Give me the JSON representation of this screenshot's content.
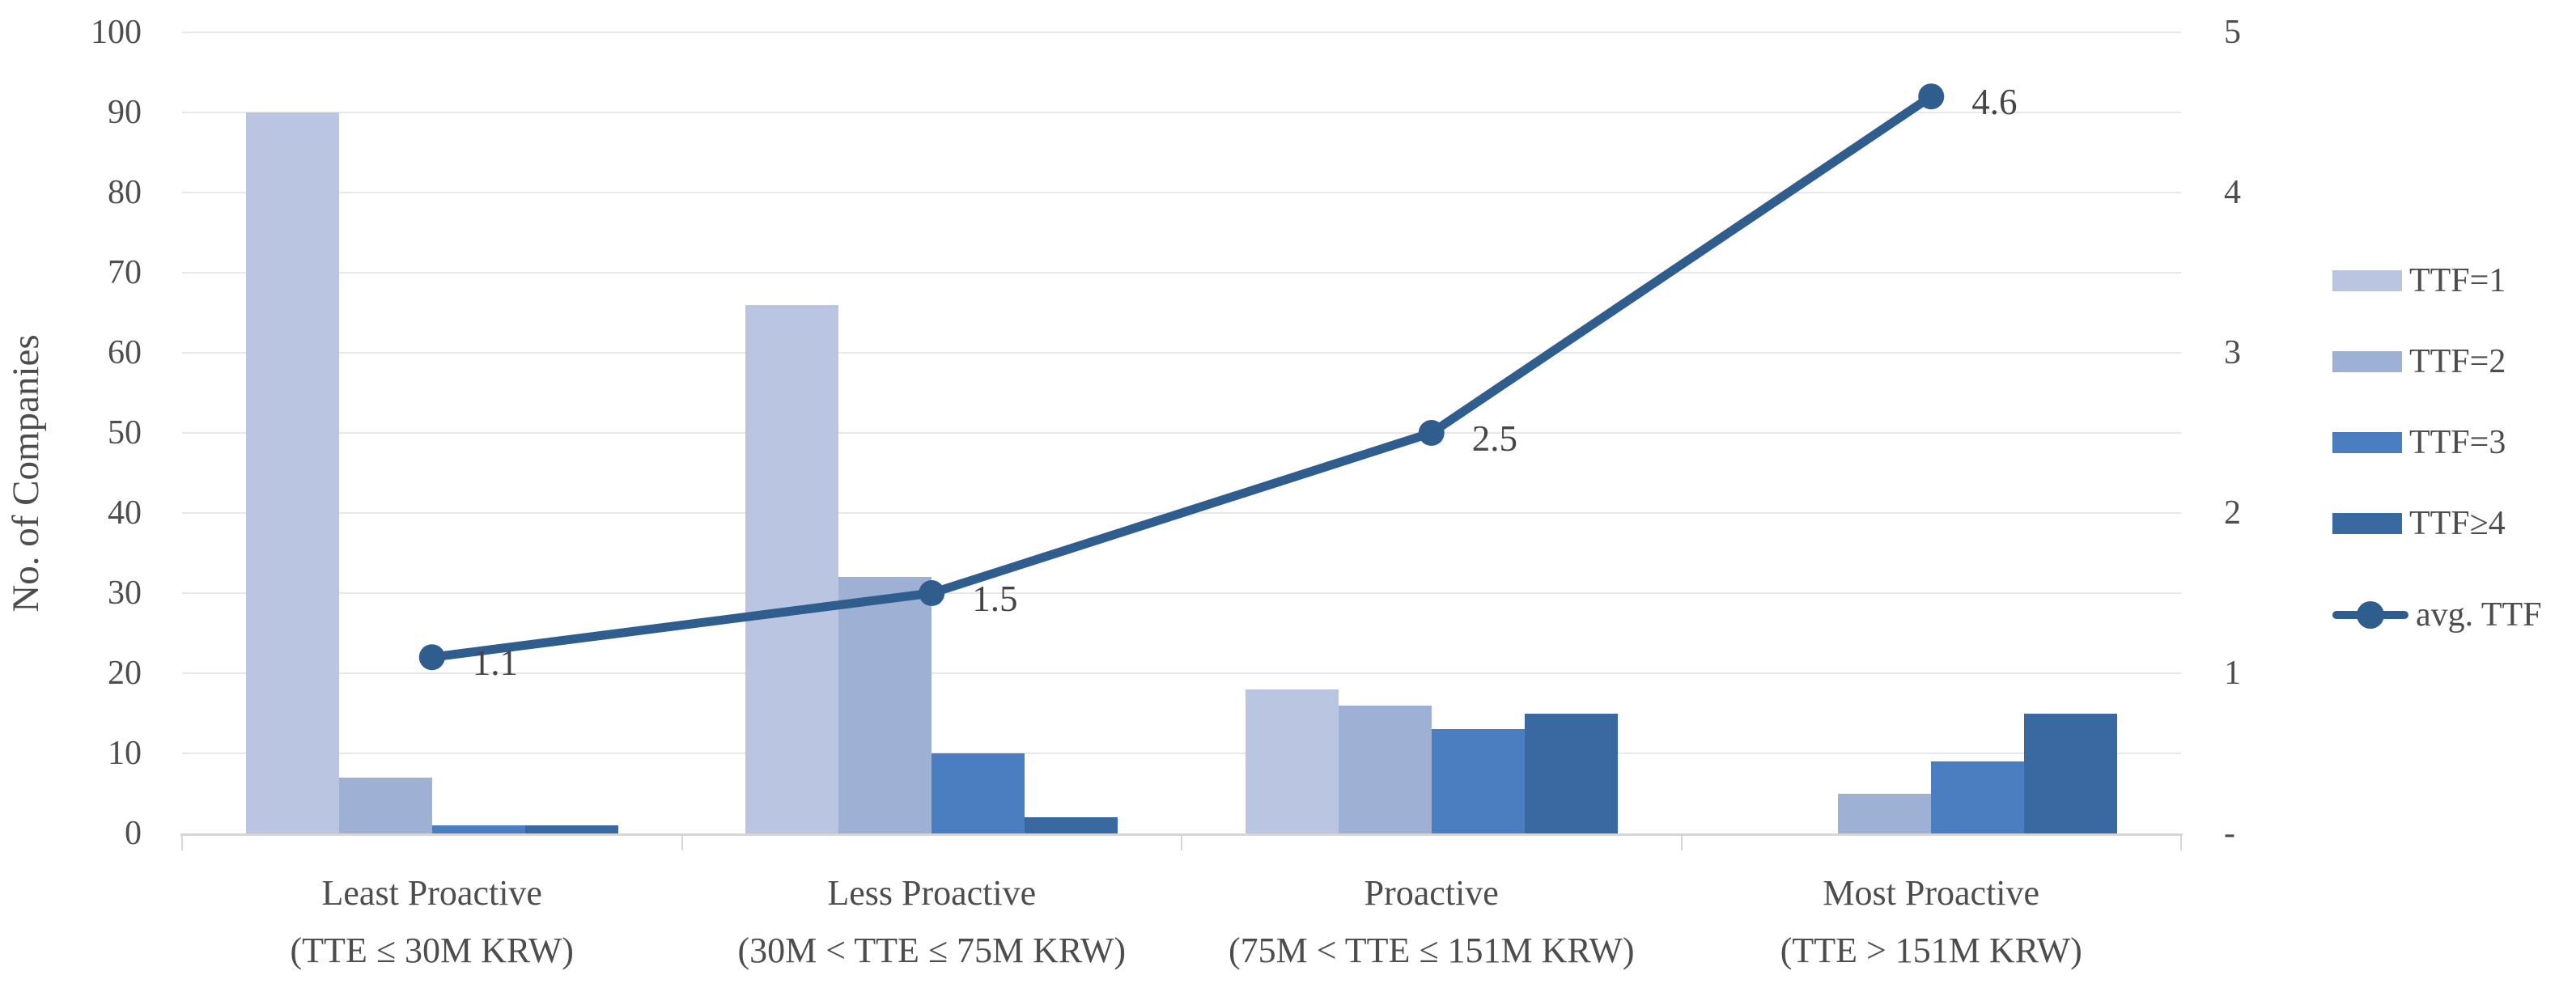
{
  "chart_data": {
    "type": "combo-bar-line",
    "title": "",
    "categories": [
      {
        "title": "Least Proactive",
        "subtitle": "(TTE ≤ 30M KRW)"
      },
      {
        "title": "Less Proactive",
        "subtitle": "(30M < TTE ≤ 75M KRW)"
      },
      {
        "title": "Proactive",
        "subtitle": "(75M < TTE ≤ 151M KRW)"
      },
      {
        "title": "Most Proactive",
        "subtitle": "(TTE > 151M KRW)"
      }
    ],
    "bar_series": [
      {
        "name": "TTF=1",
        "color": "#b9c5e1",
        "values": [
          90,
          66,
          18,
          0
        ]
      },
      {
        "name": "TTF=2",
        "color": "#9fb0d5",
        "values": [
          7,
          32,
          16,
          5
        ]
      },
      {
        "name": "TTF=3",
        "color": "#4a7ec1",
        "values": [
          1,
          10,
          13,
          9
        ]
      },
      {
        "name": "TTF≥4",
        "color": "#3a68a0",
        "values": [
          1,
          2,
          15,
          15
        ]
      }
    ],
    "line_series": {
      "name": "avg. TTF",
      "color": "#2e5d8e",
      "values": [
        1.1,
        1.5,
        2.5,
        4.6
      ],
      "labels": [
        "1.1",
        "1.5",
        "2.5",
        "4.6"
      ]
    },
    "left_axis": {
      "label": "No. of Companies",
      "min": 0,
      "max": 100,
      "ticks": [
        100,
        90,
        80,
        70,
        60,
        50,
        40,
        30,
        20,
        10,
        0
      ]
    },
    "right_axis": {
      "min": 0,
      "max": 5,
      "ticks": [
        {
          "value": 5,
          "label": "5"
        },
        {
          "value": 4,
          "label": "4"
        },
        {
          "value": 3,
          "label": "3"
        },
        {
          "value": 2,
          "label": "2"
        },
        {
          "value": 1,
          "label": "1"
        },
        {
          "value": 0,
          "label": "-"
        }
      ]
    },
    "grid": true,
    "legend_position": "right",
    "colors": {
      "grid": "#e8e8e8",
      "axis": "#d6d6d6",
      "text": "#4d4d4d"
    }
  }
}
